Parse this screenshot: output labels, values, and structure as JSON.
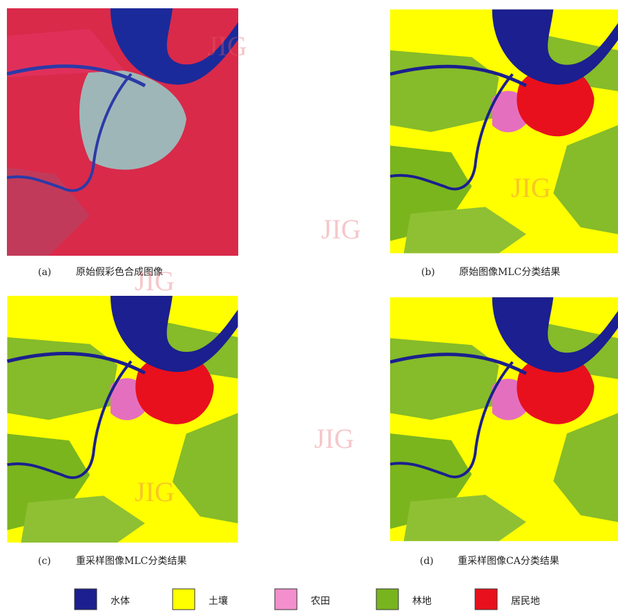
{
  "figure": {
    "panels": [
      {
        "label": "(a)",
        "caption": "原始假彩色合成图像"
      },
      {
        "label": "(b)",
        "caption": "原始图像MLC分类结果"
      },
      {
        "label": "(c)",
        "caption": "重采样图像MLC分类结果"
      },
      {
        "label": "(d)",
        "caption": "重采样图像CA分类结果"
      }
    ],
    "legend": [
      {
        "label": "水体",
        "color": "#1b1f8f"
      },
      {
        "label": "土壤",
        "color": "#ffff00"
      },
      {
        "label": "农田",
        "color": "#f28fcc"
      },
      {
        "label": "林地",
        "color": "#78b41e"
      },
      {
        "label": "居民地",
        "color": "#e8101c"
      }
    ],
    "watermark": "JIG"
  }
}
